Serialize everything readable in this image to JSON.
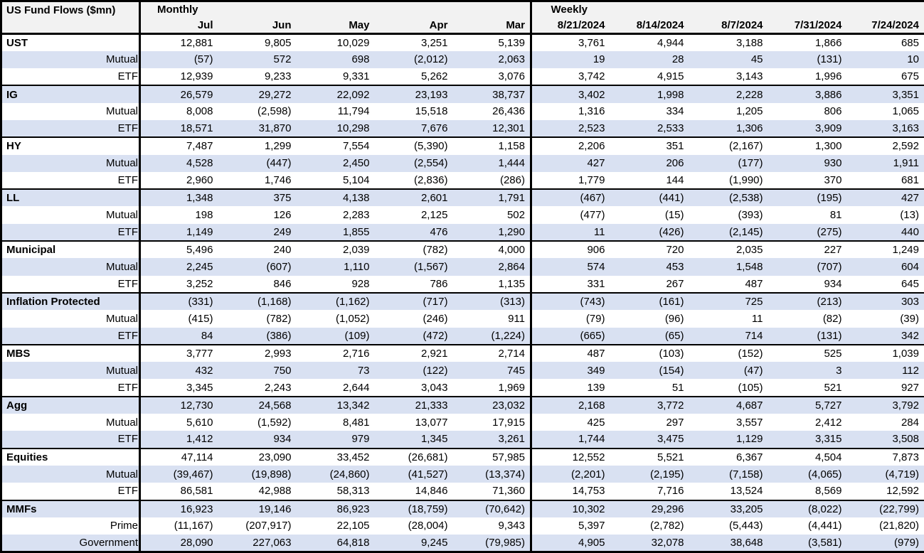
{
  "title": "US Fund Flows ($mn)",
  "header": {
    "monthly_label": "Monthly",
    "weekly_label": "Weekly",
    "monthly_columns": [
      "Jul",
      "Jun",
      "May",
      "Apr",
      "Mar"
    ],
    "weekly_columns": [
      "8/21/2024",
      "8/14/2024",
      "8/7/2024",
      "7/31/2024",
      "7/24/2024"
    ]
  },
  "colors": {
    "stripe": "#d9e1f2",
    "header_bg": "#f2f2f2",
    "row_white": "#ffffff",
    "border": "#000000",
    "text": "#000000"
  },
  "table": {
    "groups": [
      {
        "name": "UST",
        "rows": [
          {
            "label": "UST",
            "style": "group",
            "values": [
              "12,881",
              "9,805",
              "10,029",
              "3,251",
              "5,139",
              "3,761",
              "4,944",
              "3,188",
              "1,866",
              "685"
            ]
          },
          {
            "label": "Mutual",
            "style": "sub",
            "values": [
              "(57)",
              "572",
              "698",
              "(2,012)",
              "2,063",
              "19",
              "28",
              "45",
              "(131)",
              "10"
            ]
          },
          {
            "label": "ETF",
            "style": "sub",
            "values": [
              "12,939",
              "9,233",
              "9,331",
              "5,262",
              "3,076",
              "3,742",
              "4,915",
              "3,143",
              "1,996",
              "675"
            ]
          }
        ]
      },
      {
        "name": "IG",
        "rows": [
          {
            "label": "IG",
            "style": "group",
            "values": [
              "26,579",
              "29,272",
              "22,092",
              "23,193",
              "38,737",
              "3,402",
              "1,998",
              "2,228",
              "3,886",
              "3,351"
            ]
          },
          {
            "label": "Mutual",
            "style": "sub",
            "values": [
              "8,008",
              "(2,598)",
              "11,794",
              "15,518",
              "26,436",
              "1,316",
              "334",
              "1,205",
              "806",
              "1,065"
            ]
          },
          {
            "label": "ETF",
            "style": "sub",
            "values": [
              "18,571",
              "31,870",
              "10,298",
              "7,676",
              "12,301",
              "2,523",
              "2,533",
              "1,306",
              "3,909",
              "3,163"
            ]
          }
        ]
      },
      {
        "name": "HY",
        "rows": [
          {
            "label": "HY",
            "style": "group",
            "values": [
              "7,487",
              "1,299",
              "7,554",
              "(5,390)",
              "1,158",
              "2,206",
              "351",
              "(2,167)",
              "1,300",
              "2,592"
            ]
          },
          {
            "label": "Mutual",
            "style": "sub",
            "values": [
              "4,528",
              "(447)",
              "2,450",
              "(2,554)",
              "1,444",
              "427",
              "206",
              "(177)",
              "930",
              "1,911"
            ]
          },
          {
            "label": "ETF",
            "style": "sub",
            "values": [
              "2,960",
              "1,746",
              "5,104",
              "(2,836)",
              "(286)",
              "1,779",
              "144",
              "(1,990)",
              "370",
              "681"
            ]
          }
        ]
      },
      {
        "name": "LL",
        "rows": [
          {
            "label": "LL",
            "style": "group",
            "values": [
              "1,348",
              "375",
              "4,138",
              "2,601",
              "1,791",
              "(467)",
              "(441)",
              "(2,538)",
              "(195)",
              "427"
            ]
          },
          {
            "label": "Mutual",
            "style": "sub",
            "values": [
              "198",
              "126",
              "2,283",
              "2,125",
              "502",
              "(477)",
              "(15)",
              "(393)",
              "81",
              "(13)"
            ]
          },
          {
            "label": "ETF",
            "style": "sub",
            "values": [
              "1,149",
              "249",
              "1,855",
              "476",
              "1,290",
              "11",
              "(426)",
              "(2,145)",
              "(275)",
              "440"
            ]
          }
        ]
      },
      {
        "name": "Municipal",
        "rows": [
          {
            "label": "Municipal",
            "style": "group",
            "values": [
              "5,496",
              "240",
              "2,039",
              "(782)",
              "4,000",
              "906",
              "720",
              "2,035",
              "227",
              "1,249"
            ]
          },
          {
            "label": "Mutual",
            "style": "sub",
            "values": [
              "2,245",
              "(607)",
              "1,110",
              "(1,567)",
              "2,864",
              "574",
              "453",
              "1,548",
              "(707)",
              "604"
            ]
          },
          {
            "label": "ETF",
            "style": "sub",
            "values": [
              "3,252",
              "846",
              "928",
              "786",
              "1,135",
              "331",
              "267",
              "487",
              "934",
              "645"
            ]
          }
        ]
      },
      {
        "name": "Inflation Protected",
        "rows": [
          {
            "label": "Inflation Protected",
            "style": "group",
            "values": [
              "(331)",
              "(1,168)",
              "(1,162)",
              "(717)",
              "(313)",
              "(743)",
              "(161)",
              "725",
              "(213)",
              "303"
            ]
          },
          {
            "label": "Mutual",
            "style": "sub",
            "values": [
              "(415)",
              "(782)",
              "(1,052)",
              "(246)",
              "911",
              "(79)",
              "(96)",
              "11",
              "(82)",
              "(39)"
            ]
          },
          {
            "label": "ETF",
            "style": "sub",
            "values": [
              "84",
              "(386)",
              "(109)",
              "(472)",
              "(1,224)",
              "(665)",
              "(65)",
              "714",
              "(131)",
              "342"
            ]
          }
        ]
      },
      {
        "name": "MBS",
        "rows": [
          {
            "label": "MBS",
            "style": "group",
            "values": [
              "3,777",
              "2,993",
              "2,716",
              "2,921",
              "2,714",
              "487",
              "(103)",
              "(152)",
              "525",
              "1,039"
            ]
          },
          {
            "label": "Mutual",
            "style": "sub",
            "values": [
              "432",
              "750",
              "73",
              "(122)",
              "745",
              "349",
              "(154)",
              "(47)",
              "3",
              "112"
            ]
          },
          {
            "label": "ETF",
            "style": "sub",
            "values": [
              "3,345",
              "2,243",
              "2,644",
              "3,043",
              "1,969",
              "139",
              "51",
              "(105)",
              "521",
              "927"
            ]
          }
        ]
      },
      {
        "name": "Agg",
        "rows": [
          {
            "label": "Agg",
            "style": "group",
            "values": [
              "12,730",
              "24,568",
              "13,342",
              "21,333",
              "23,032",
              "2,168",
              "3,772",
              "4,687",
              "5,727",
              "3,792"
            ]
          },
          {
            "label": "Mutual",
            "style": "sub",
            "values": [
              "5,610",
              "(1,592)",
              "8,481",
              "13,077",
              "17,915",
              "425",
              "297",
              "3,557",
              "2,412",
              "284"
            ]
          },
          {
            "label": "ETF",
            "style": "sub",
            "values": [
              "1,412",
              "934",
              "979",
              "1,345",
              "3,261",
              "1,744",
              "3,475",
              "1,129",
              "3,315",
              "3,508"
            ]
          }
        ]
      },
      {
        "name": "Equities",
        "rows": [
          {
            "label": "Equities",
            "style": "group",
            "values": [
              "47,114",
              "23,090",
              "33,452",
              "(26,681)",
              "57,985",
              "12,552",
              "5,521",
              "6,367",
              "4,504",
              "7,873"
            ]
          },
          {
            "label": "Mutual",
            "style": "sub",
            "values": [
              "(39,467)",
              "(19,898)",
              "(24,860)",
              "(41,527)",
              "(13,374)",
              "(2,201)",
              "(2,195)",
              "(7,158)",
              "(4,065)",
              "(4,719)"
            ]
          },
          {
            "label": "ETF",
            "style": "sub",
            "values": [
              "86,581",
              "42,988",
              "58,313",
              "14,846",
              "71,360",
              "14,753",
              "7,716",
              "13,524",
              "8,569",
              "12,592"
            ]
          }
        ]
      },
      {
        "name": "MMFs",
        "rows": [
          {
            "label": "MMFs",
            "style": "group",
            "values": [
              "16,923",
              "19,146",
              "86,923",
              "(18,759)",
              "(70,642)",
              "10,302",
              "29,296",
              "33,205",
              "(8,022)",
              "(22,799)"
            ]
          },
          {
            "label": "Prime",
            "style": "sub",
            "values": [
              "(11,167)",
              "(207,917)",
              "22,105",
              "(28,004)",
              "9,343",
              "5,397",
              "(2,782)",
              "(5,443)",
              "(4,441)",
              "(21,820)"
            ]
          },
          {
            "label": "Government",
            "style": "sub",
            "values": [
              "28,090",
              "227,063",
              "64,818",
              "9,245",
              "(79,985)",
              "4,905",
              "32,078",
              "38,648",
              "(3,581)",
              "(979)"
            ]
          }
        ]
      }
    ]
  }
}
